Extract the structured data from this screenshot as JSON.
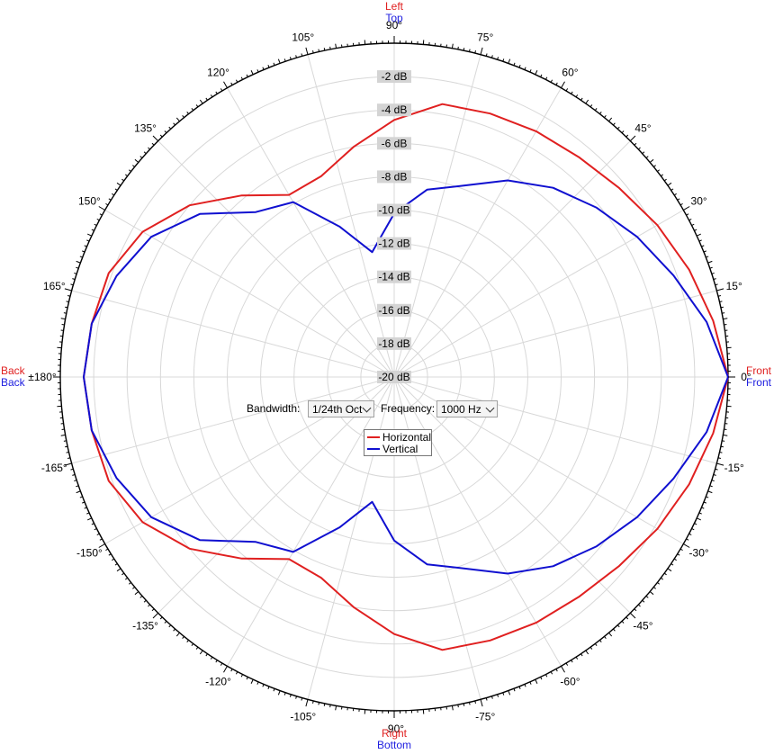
{
  "chart_data": {
    "type": "polar-line",
    "angle_labels": [
      "0°",
      "15°",
      "30°",
      "45°",
      "60°",
      "75°",
      "90°",
      "105°",
      "120°",
      "135°",
      "150°",
      "165°",
      "±180°",
      "-165°",
      "-150°",
      "-135°",
      "-120°",
      "-105°",
      "-90°",
      "-75°",
      "-60°",
      "-45°",
      "-30°",
      "-15°"
    ],
    "angle_label_values": [
      0,
      15,
      30,
      45,
      60,
      75,
      90,
      105,
      120,
      135,
      150,
      165,
      180,
      -165,
      -150,
      -135,
      -120,
      -105,
      -90,
      -75,
      -60,
      -45,
      -30,
      -15
    ],
    "radial_labels": [
      "-2 dB",
      "-4 dB",
      "-6 dB",
      "-8 dB",
      "-10 dB",
      "-12 dB",
      "-14 dB",
      "-16 dB",
      "-18 dB",
      "-20 dB"
    ],
    "radial_range_db": [
      -20,
      0
    ],
    "rlim": [
      -20,
      0
    ],
    "radial_step_db": 2,
    "grid": true,
    "side_labels": {
      "top": [
        {
          "text": "Left",
          "color": "#e02020"
        },
        {
          "text": "Top",
          "color": "#2020e0"
        }
      ],
      "bottom": [
        {
          "text": "Right",
          "color": "#e02020"
        },
        {
          "text": "Bottom",
          "color": "#2020e0"
        }
      ],
      "left": [
        {
          "text": "Back",
          "color": "#e02020"
        },
        {
          "text": "Back",
          "color": "#2020e0"
        }
      ],
      "right": [
        {
          "text": "Front",
          "color": "#e02020"
        },
        {
          "text": "Front",
          "color": "#2020e0"
        }
      ]
    },
    "angles": [
      0,
      10,
      20,
      30,
      40,
      50,
      60,
      70,
      80,
      90,
      100,
      110,
      120,
      130,
      140,
      150,
      160,
      170,
      180
    ],
    "series": [
      {
        "name": "Horizontal",
        "color": "#e02020",
        "upper_db": [
          0,
          -0.6,
          -1.2,
          -1.8,
          -2.4,
          -2.8,
          -3.0,
          -3.2,
          -3.4,
          -4.6,
          -6.0,
          -7.2,
          -7.4,
          -5.8,
          -4.0,
          -2.6,
          -1.8,
          -1.6,
          -1.4
        ],
        "lower_db": [
          0,
          -0.6,
          -1.2,
          -1.8,
          -2.4,
          -2.8,
          -3.0,
          -3.2,
          -3.4,
          -4.6,
          -6.0,
          -7.2,
          -7.4,
          -5.8,
          -4.0,
          -2.6,
          -1.8,
          -1.6,
          -1.4
        ]
      },
      {
        "name": "Vertical",
        "color": "#1010d0",
        "upper_db": [
          0,
          -1.0,
          -2.2,
          -3.2,
          -4.2,
          -5.2,
          -6.4,
          -7.8,
          -8.6,
          -10.2,
          -12.4,
          -10.4,
          -7.9,
          -7.1,
          -4.8,
          -3.2,
          -2.3,
          -1.6,
          -1.4
        ],
        "lower_db": [
          0,
          -1.0,
          -2.2,
          -3.2,
          -4.2,
          -5.2,
          -6.4,
          -7.8,
          -8.6,
          -10.2,
          -12.4,
          -10.4,
          -7.9,
          -7.1,
          -4.8,
          -3.2,
          -2.3,
          -1.6,
          -1.4
        ]
      }
    ]
  },
  "controls": {
    "bandwidth_label": "Bandwidth:",
    "bandwidth_value": "1/24th Oct",
    "frequency_label": "Frequency:",
    "frequency_value": "1000 Hz"
  },
  "legend": {
    "items": [
      {
        "label": "Horizontal",
        "color": "#e02020"
      },
      {
        "label": "Vertical",
        "color": "#1010d0"
      }
    ]
  },
  "colors": {
    "grid": "#d8d8d8",
    "axis": "#000000",
    "db_label_bg": "#d4d4d4"
  }
}
